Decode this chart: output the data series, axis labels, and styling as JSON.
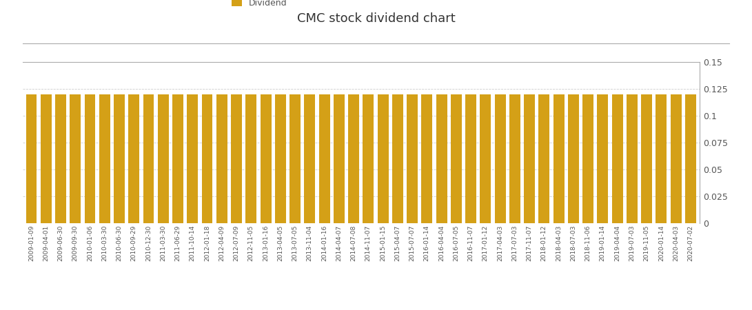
{
  "title": "CMC stock dividend chart",
  "bar_color": "#D4A017",
  "legend_label": "Dividend",
  "legend_color": "#D4A017",
  "ylim": [
    0,
    0.15
  ],
  "yticks": [
    0,
    0.025,
    0.05,
    0.075,
    0.1,
    0.125,
    0.15
  ],
  "ytick_labels": [
    "0",
    "0.025",
    "0.05",
    "0.075",
    "0.1",
    "0.125",
    "0.15"
  ],
  "background_color": "#ffffff",
  "grid_color": "#cccccc",
  "dates": [
    "2009-01-09",
    "2009-04-01",
    "2009-06-30",
    "2009-09-30",
    "2010-01-06",
    "2010-03-30",
    "2010-06-30",
    "2010-09-29",
    "2010-12-30",
    "2011-03-30",
    "2011-06-29",
    "2011-10-14",
    "2012-01-18",
    "2012-04-09",
    "2012-07-09",
    "2012-11-05",
    "2013-01-16",
    "2013-04-05",
    "2013-07-05",
    "2013-11-04",
    "2014-01-16",
    "2014-04-07",
    "2014-07-08",
    "2014-11-07",
    "2015-01-15",
    "2015-04-07",
    "2015-07-07",
    "2016-01-14",
    "2016-04-04",
    "2016-07-05",
    "2016-11-07",
    "2017-01-12",
    "2017-04-03",
    "2017-07-03",
    "2017-11-07",
    "2018-01-12",
    "2018-04-03",
    "2018-07-03",
    "2018-11-06",
    "2019-01-14",
    "2019-04-04",
    "2019-07-03",
    "2019-11-05",
    "2020-01-14",
    "2020-04-03",
    "2020-07-02"
  ],
  "values": [
    0.12,
    0.12,
    0.12,
    0.12,
    0.12,
    0.12,
    0.12,
    0.12,
    0.12,
    0.12,
    0.12,
    0.12,
    0.12,
    0.12,
    0.12,
    0.12,
    0.12,
    0.12,
    0.12,
    0.12,
    0.12,
    0.12,
    0.12,
    0.12,
    0.12,
    0.12,
    0.12,
    0.12,
    0.12,
    0.12,
    0.12,
    0.12,
    0.12,
    0.12,
    0.12,
    0.12,
    0.12,
    0.12,
    0.12,
    0.12,
    0.12,
    0.12,
    0.12,
    0.12,
    0.12,
    0.12
  ],
  "title_fontsize": 13,
  "tick_fontsize": 6.5,
  "ytick_fontsize": 9,
  "bar_width": 0.75
}
